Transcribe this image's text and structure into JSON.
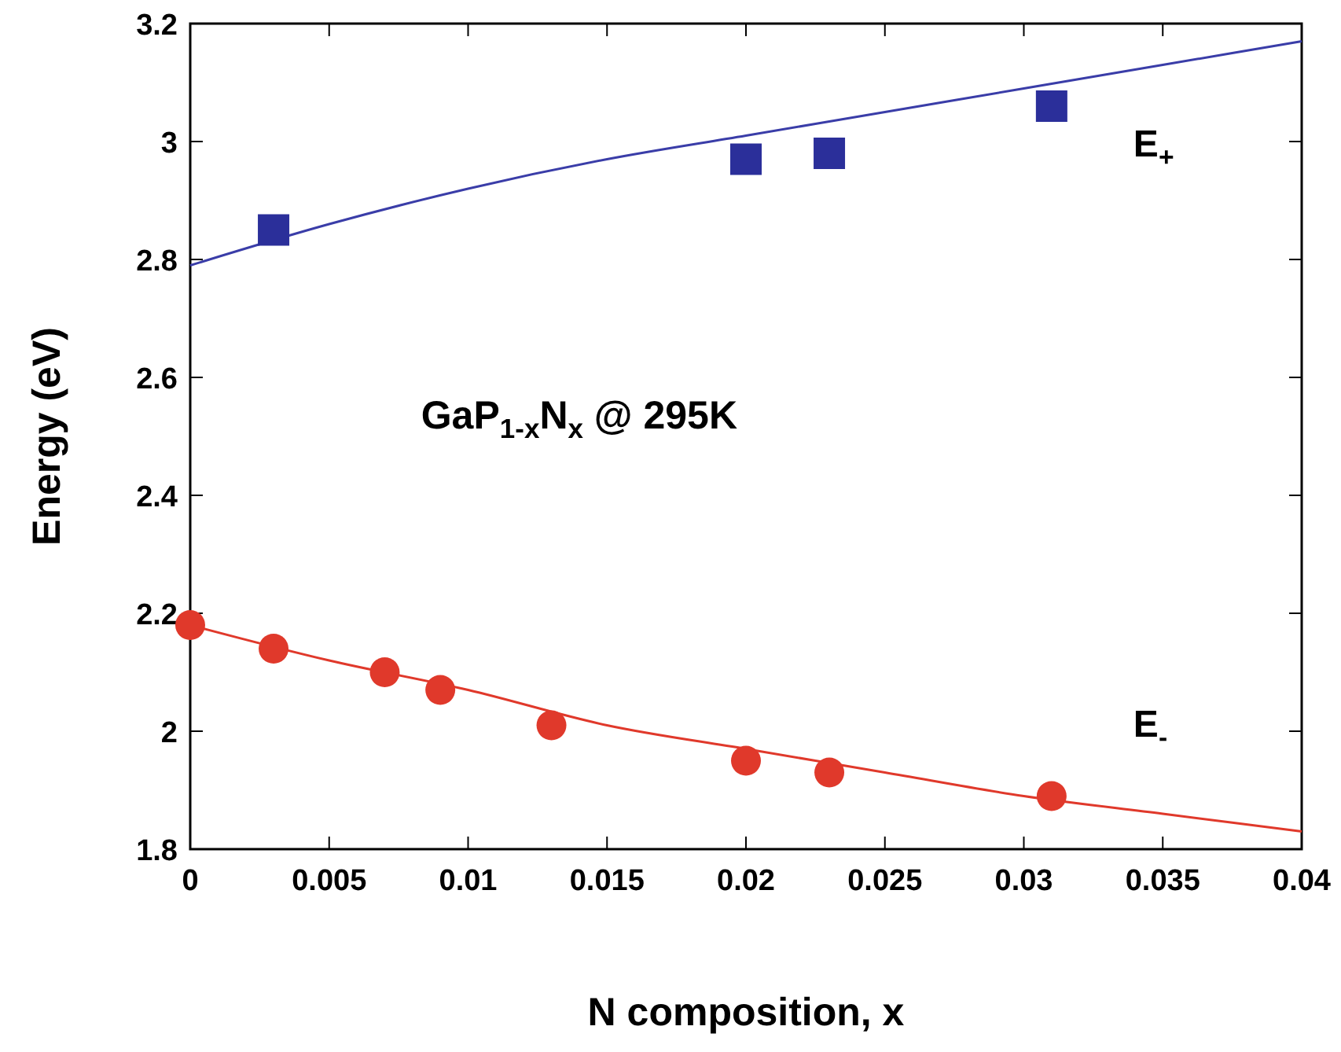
{
  "chart_data": {
    "type": "scatter",
    "xlabel": "N composition, x",
    "ylabel": "Energy (eV)",
    "xlim": [
      0,
      0.04
    ],
    "xticks": [
      0,
      0.005,
      0.01,
      0.015,
      0.02,
      0.025,
      0.03,
      0.035,
      0.04
    ],
    "ylim": [
      1.8,
      3.2
    ],
    "yticks": [
      1.8,
      2,
      2.2,
      2.4,
      2.6,
      2.8,
      3,
      3.2
    ],
    "grid": false,
    "series": [
      {
        "type": "line",
        "color": "#3a3da8",
        "line_style": "solid",
        "x": [
          0,
          0.005,
          0.01,
          0.015,
          0.02,
          0.025,
          0.03,
          0.035,
          0.04
        ],
        "values": [
          2.79,
          2.86,
          2.92,
          2.97,
          3.01,
          3.05,
          3.09,
          3.13,
          3.17
        ]
      },
      {
        "type": "line",
        "color": "#e0392b",
        "line_style": "solid",
        "x": [
          0,
          0.005,
          0.01,
          0.015,
          0.02,
          0.025,
          0.03,
          0.035,
          0.04
        ],
        "values": [
          2.18,
          2.12,
          2.07,
          2.01,
          1.97,
          1.93,
          1.89,
          1.86,
          1.83
        ]
      },
      {
        "name": "E$_{+}$",
        "color": "#2b2f9a",
        "marker": "square",
        "x": [
          0.003,
          0.02,
          0.023,
          0.031
        ],
        "values": [
          2.85,
          2.97,
          2.98,
          3.06
        ]
      },
      {
        "name": "E$_{-}$",
        "color": "#e0392b",
        "marker": "circle",
        "x": [
          0,
          0.003,
          0.007,
          0.009,
          0.013,
          0.02,
          0.023,
          0.031
        ],
        "values": [
          2.18,
          2.14,
          2.1,
          2.07,
          2.01,
          1.95,
          1.93,
          1.89
        ]
      }
    ],
    "annotations": [
      "GaP$_{1-x}$N$_{x}$ @ 295K"
    ]
  }
}
